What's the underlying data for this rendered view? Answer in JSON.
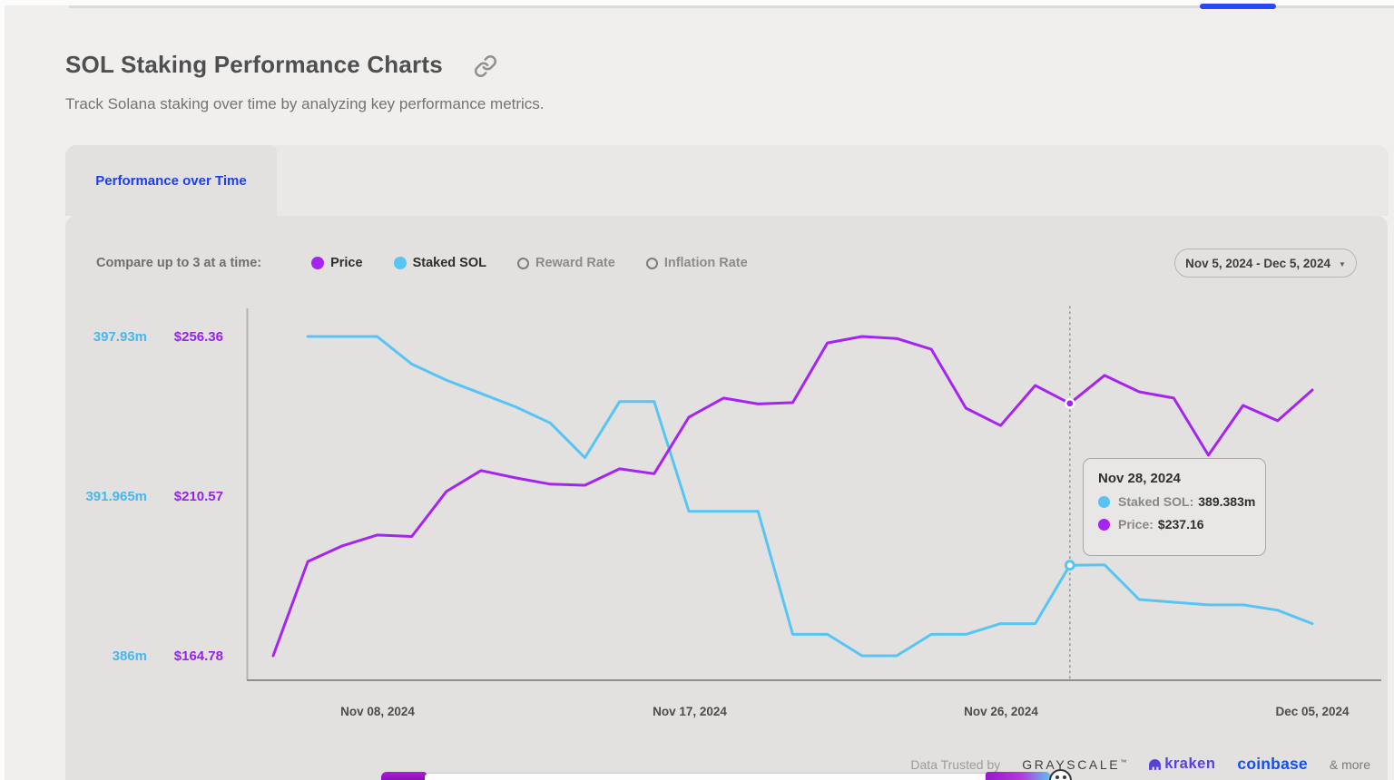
{
  "page": {
    "title": "SOL Staking Performance Charts",
    "subtitle": "Track Solana staking over time by analyzing key performance metrics.",
    "active_tab": "Performance over Time",
    "compare_label": "Compare up to 3 at a time:",
    "date_range": "Nov 5, 2024 - Dec 5, 2024"
  },
  "legend": {
    "items": [
      {
        "label": "Price",
        "color": "#a524f2",
        "selected": true
      },
      {
        "label": "Staked SOL",
        "color": "#57c5f3",
        "selected": true
      },
      {
        "label": "Reward Rate",
        "selected": false
      },
      {
        "label": "Inflation Rate",
        "selected": false
      }
    ]
  },
  "tooltip": {
    "date": "Nov 28, 2024",
    "rows": [
      {
        "label": "Staked SOL:",
        "value": "389.383m",
        "color": "#57c5f3"
      },
      {
        "label": "Price:",
        "value": "$237.16",
        "color": "#a524f2"
      }
    ]
  },
  "footer": {
    "trusted_label": "Data Trusted by",
    "partners": [
      "GRAYSCALE",
      "kraken",
      "coinbase"
    ],
    "more_label": "& more"
  },
  "chart_data": {
    "type": "line",
    "x": [
      "Nov 05",
      "Nov 06",
      "Nov 07",
      "Nov 08",
      "Nov 09",
      "Nov 10",
      "Nov 11",
      "Nov 12",
      "Nov 13",
      "Nov 14",
      "Nov 15",
      "Nov 16",
      "Nov 17",
      "Nov 18",
      "Nov 19",
      "Nov 20",
      "Nov 21",
      "Nov 22",
      "Nov 23",
      "Nov 24",
      "Nov 25",
      "Nov 26",
      "Nov 27",
      "Nov 28",
      "Nov 29",
      "Nov 30",
      "Dec 01",
      "Dec 02",
      "Dec 03",
      "Dec 04",
      "Dec 05"
    ],
    "x_tick_labels": [
      "Nov 08, 2024",
      "Nov 17, 2024",
      "Nov 26, 2024",
      "Dec 05, 2024"
    ],
    "series": [
      {
        "name": "Staked SOL",
        "color": "#57c5f3",
        "axis": "left",
        "unit": "m SOL",
        "values": [
          null,
          397.93,
          397.93,
          397.93,
          396.9,
          396.3,
          395.8,
          395.3,
          394.7,
          393.4,
          395.5,
          395.5,
          391.4,
          391.4,
          391.4,
          386.8,
          386.8,
          386.0,
          386.0,
          386.8,
          386.8,
          387.2,
          387.2,
          389.383,
          389.4,
          388.1,
          388.0,
          387.9,
          387.9,
          387.7,
          387.2
        ]
      },
      {
        "name": "Price",
        "color": "#a524f2",
        "axis": "right",
        "unit": "USD",
        "values": [
          164.78,
          191.8,
          196.3,
          199.4,
          199.0,
          211.9,
          217.9,
          215.8,
          214.0,
          213.7,
          218.4,
          217.0,
          233.2,
          238.7,
          237.0,
          237.4,
          254.5,
          256.36,
          255.8,
          252.7,
          235.8,
          230.8,
          242.3,
          237.16,
          245.2,
          240.5,
          238.7,
          222.3,
          236.6,
          232.2,
          241.0
        ]
      }
    ],
    "left_axis": {
      "ticks": [
        "397.93m",
        "391.965m",
        "386m"
      ],
      "max": 397.93,
      "min": 386
    },
    "right_axis": {
      "ticks": [
        "$256.36",
        "$210.57",
        "$164.78"
      ],
      "max": 256.36,
      "min": 164.78
    },
    "hover_index": 23,
    "legend_position": "top",
    "grid": false
  }
}
